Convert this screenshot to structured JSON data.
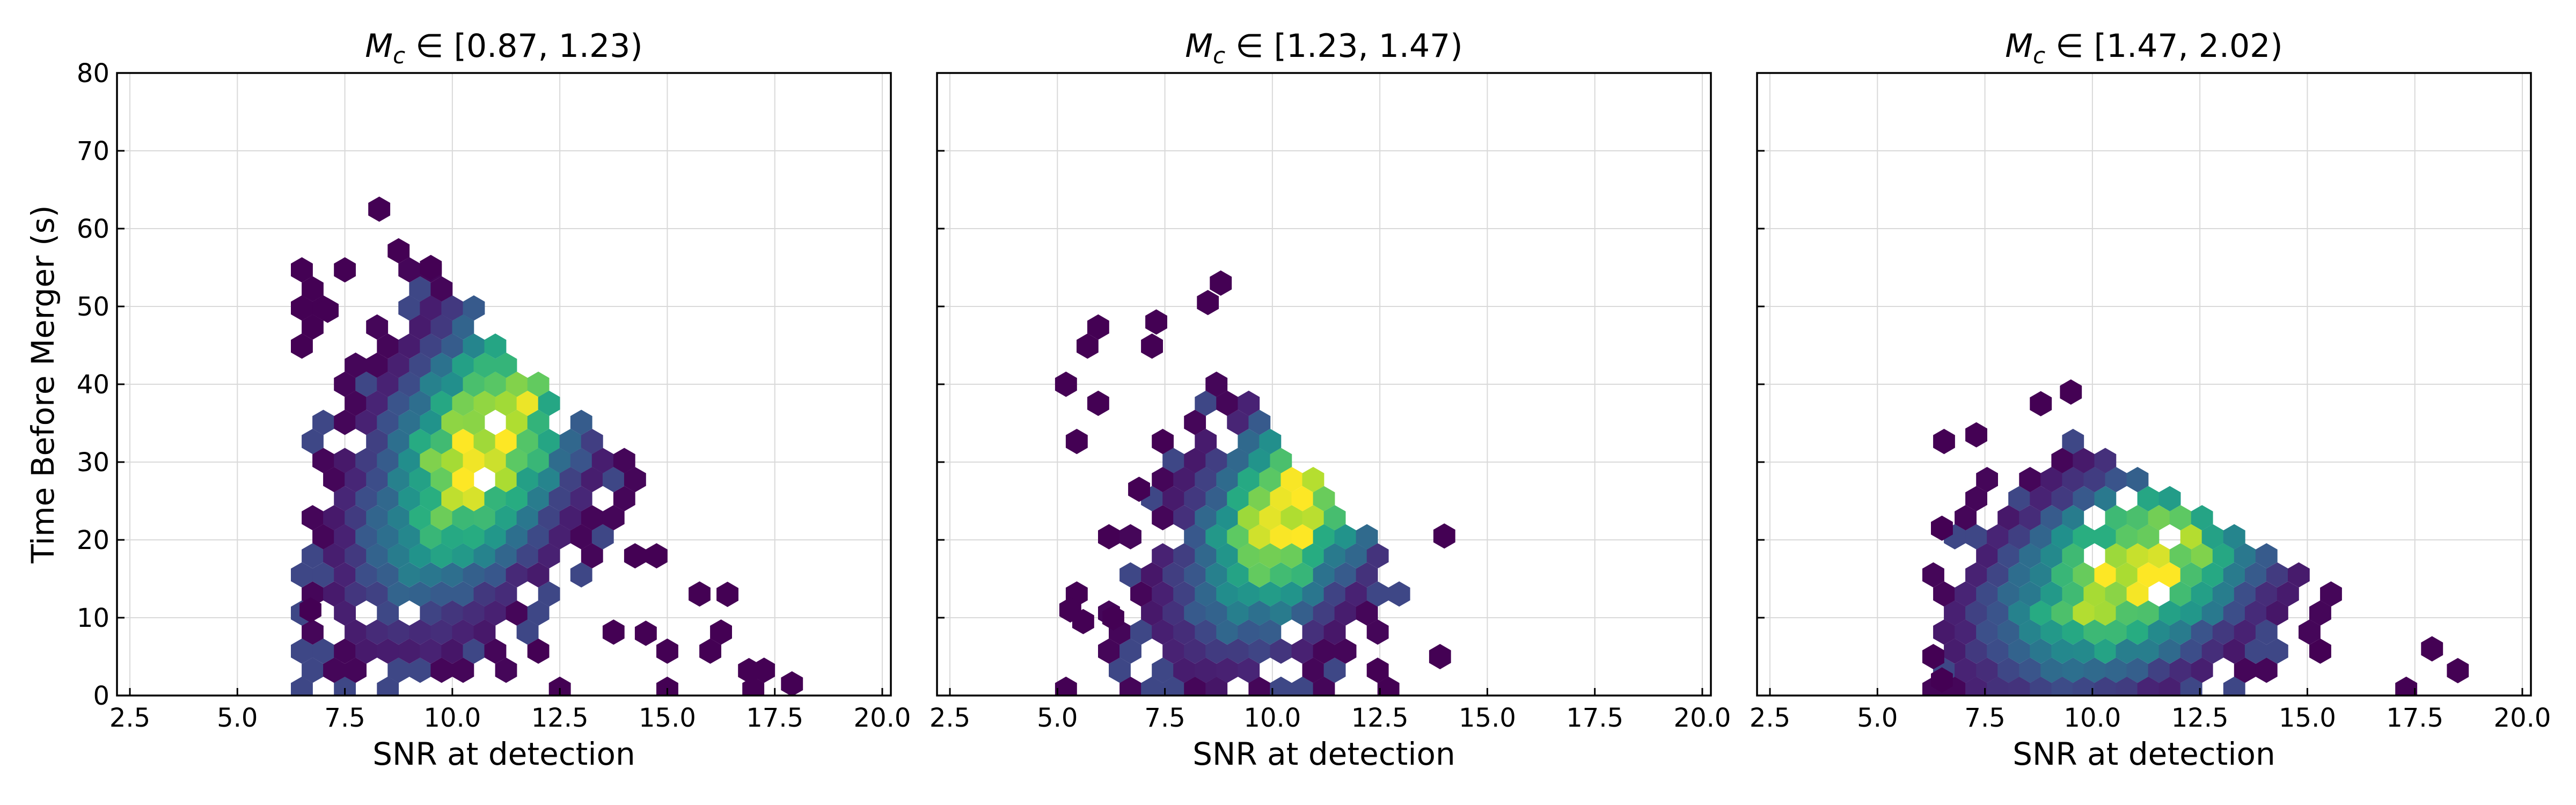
{
  "chart_data": {
    "type": "hexbin",
    "colormap": "viridis",
    "colors": {
      "low": "#440154",
      "mid_low": "#3b528b",
      "mid": "#21918c",
      "mid_high": "#5ec962",
      "high": "#fde725",
      "background": "#ffffff",
      "grid": "#d9d9d9"
    },
    "ylabel": "Time Before Merger (s)",
    "xlabel": "SNR at detection",
    "xlim": [
      2.2,
      20.2
    ],
    "ylim": [
      0,
      80
    ],
    "xticks": [
      "2.5",
      "5.0",
      "7.5",
      "10.0",
      "12.5",
      "15.0",
      "17.5",
      "20.0"
    ],
    "xtick_values": [
      2.5,
      5.0,
      7.5,
      10.0,
      12.5,
      15.0,
      17.5,
      20.0
    ],
    "yticks": [
      "0",
      "10",
      "20",
      "30",
      "40",
      "50",
      "60",
      "70",
      "80"
    ],
    "ytick_values": [
      0,
      10,
      20,
      30,
      40,
      50,
      60,
      70,
      80
    ],
    "panels": [
      {
        "title_symbol": "M",
        "title_sub": "c",
        "title_range": " ∈ [0.87, 1.23)",
        "density": {
          "peak_snr": 10.8,
          "peak_time": 33,
          "spread_snr": 1.4,
          "spread_time": 11,
          "tilt": -0.55
        },
        "snr_range": [
          6.5,
          18.0
        ],
        "time_range": [
          0,
          63
        ],
        "sparse_points": [
          [
            8.3,
            62.5
          ],
          [
            7.1,
            49.5
          ],
          [
            16.9,
            3.2
          ],
          [
            17.9,
            1.5
          ],
          [
            6.7,
            11.0
          ],
          [
            16.4,
            13.0
          ],
          [
            14.5,
            8.0
          ],
          [
            9.5,
            55.0
          ]
        ]
      },
      {
        "title_symbol": "M",
        "title_sub": "c",
        "title_range": " ∈ [1.23, 1.47)",
        "density": {
          "peak_snr": 10.5,
          "peak_time": 24,
          "spread_snr": 1.3,
          "spread_time": 9,
          "tilt": -0.5
        },
        "snr_range": [
          5.2,
          14.2
        ],
        "time_range": [
          1,
          53
        ],
        "sparse_points": [
          [
            8.8,
            53.0
          ],
          [
            8.5,
            50.5
          ],
          [
            7.3,
            48.0
          ],
          [
            5.3,
            11.0
          ],
          [
            5.6,
            9.5
          ],
          [
            6.3,
            10.0
          ],
          [
            14.0,
            20.5
          ],
          [
            13.9,
            5.0
          ],
          [
            6.9,
            26.5
          ]
        ]
      },
      {
        "title_symbol": "M",
        "title_sub": "c",
        "title_range": " ∈ [1.47, 2.02)",
        "density": {
          "peak_snr": 11.0,
          "peak_time": 16,
          "spread_snr": 1.8,
          "spread_time": 8,
          "tilt": -0.45
        },
        "snr_range": [
          6.3,
          18.6
        ],
        "time_range": [
          0,
          39
        ],
        "sparse_points": [
          [
            9.5,
            39.0
          ],
          [
            8.8,
            37.5
          ],
          [
            7.3,
            33.5
          ],
          [
            6.5,
            21.5
          ],
          [
            18.5,
            3.2
          ],
          [
            17.9,
            6.0
          ],
          [
            6.3,
            5.0
          ],
          [
            6.5,
            2.0
          ]
        ]
      }
    ]
  }
}
